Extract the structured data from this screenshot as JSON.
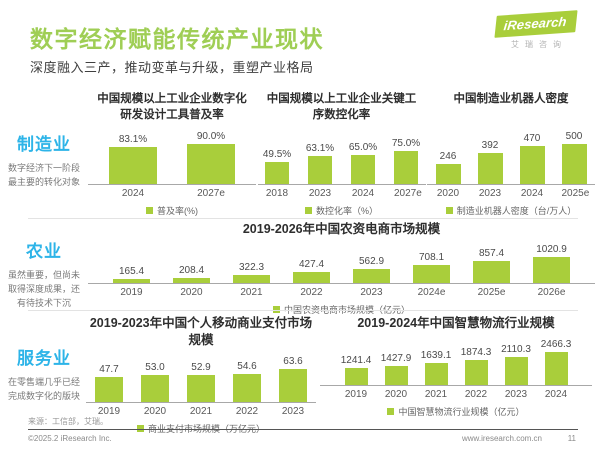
{
  "page": {
    "title": "数字经济赋能传统产业现状",
    "subtitle": "深度融入三产，推动变革与升级，重塑产业格局"
  },
  "logo": {
    "brand": "iResearch",
    "brand_cn": "艾瑞咨询"
  },
  "colors": {
    "accent_green": "#a9ce3b",
    "title_green": "#9fce55",
    "sidebar_blue": "#2db4e8",
    "divider_gray": "#e3e3e3"
  },
  "sidebar": {
    "sections": [
      {
        "label": "制造业",
        "desc": "数字经济下一阶段最主要的转化对象"
      },
      {
        "label": "农业",
        "desc": "虽然重要，但尚未取得深度成果，还有待技术下沉"
      },
      {
        "label": "服务业",
        "desc": "在零售端几乎已经完成数字化的版块"
      }
    ]
  },
  "chart_data": [
    {
      "type": "bar",
      "title": "中国规模以上工业企业数字化研发设计工具普及率",
      "categories": [
        "2024",
        "2027e"
      ],
      "values": [
        83.1,
        90.0
      ],
      "labels": [
        "83.1%",
        "90.0%"
      ],
      "legend": "普及率(%)",
      "legend_position": "bottom",
      "xlabel": "",
      "ylabel": "",
      "ylim": [
        0,
        100
      ],
      "grid": false
    },
    {
      "type": "bar",
      "title": "中国规模以上工业企业关键工序数控化率",
      "categories": [
        "2018",
        "2023",
        "2024",
        "2027e"
      ],
      "values": [
        49.5,
        63.1,
        65.0,
        75.0
      ],
      "labels": [
        "49.5%",
        "63.1%",
        "65.0%",
        "75.0%"
      ],
      "legend": "数控化率（%）",
      "legend_position": "bottom",
      "xlabel": "",
      "ylabel": "",
      "ylim": [
        0,
        100
      ],
      "grid": false
    },
    {
      "type": "bar",
      "title": "中国制造业机器人密度",
      "categories": [
        "2020",
        "2023",
        "2024",
        "2025e"
      ],
      "values": [
        246,
        392,
        470,
        500
      ],
      "labels": [
        "246",
        "392",
        "470",
        "500"
      ],
      "legend": "制造业机器人密度（台/万人）",
      "legend_position": "bottom",
      "xlabel": "",
      "ylabel": "",
      "ylim": [
        0,
        550
      ],
      "grid": false
    },
    {
      "type": "bar",
      "title": "2019-2026年中国农资电商市场规模",
      "categories": [
        "2019",
        "2020",
        "2021",
        "2022",
        "2023",
        "2024e",
        "2025e",
        "2026e"
      ],
      "values": [
        165.4,
        208.4,
        322.3,
        427.4,
        562.9,
        708.1,
        857.4,
        1020.9
      ],
      "labels": [
        "165.4",
        "208.4",
        "322.3",
        "427.4",
        "562.9",
        "708.1",
        "857.4",
        "1020.9"
      ],
      "legend": "中国农资电商市场规模（亿元）",
      "legend_position": "bottom",
      "xlabel": "",
      "ylabel": "",
      "ylim": [
        0,
        1100
      ],
      "grid": false
    },
    {
      "type": "bar",
      "title": "2019-2023年中国个人移动商业支付市场规模",
      "categories": [
        "2019",
        "2020",
        "2021",
        "2022",
        "2023"
      ],
      "values": [
        47.7,
        53.0,
        52.9,
        54.6,
        63.6
      ],
      "labels": [
        "47.7",
        "53.0",
        "52.9",
        "54.6",
        "63.6"
      ],
      "legend": "商业支付市场规模（万亿元）",
      "legend_position": "bottom",
      "xlabel": "",
      "ylabel": "",
      "ylim": [
        0,
        70
      ],
      "grid": false
    },
    {
      "type": "bar",
      "title": "2019-2024年中国智慧物流行业规模",
      "categories": [
        "2019",
        "2020",
        "2021",
        "2022",
        "2023",
        "2024"
      ],
      "values": [
        1241.4,
        1427.9,
        1639.1,
        1874.3,
        2110.3,
        2466.3
      ],
      "labels": [
        "1241.4",
        "1427.9",
        "1639.1",
        "1874.3",
        "2110.3",
        "2466.3"
      ],
      "legend": "中国智慧物流行业规模（亿元）",
      "legend_position": "bottom",
      "xlabel": "",
      "ylabel": "",
      "ylim": [
        0,
        2700
      ],
      "grid": false
    }
  ],
  "footer": {
    "source": "来源：工信部，艾瑞。",
    "copyright": "©2025.2 iResearch Inc.",
    "website": "www.iresearch.com.cn",
    "page_number": "11"
  }
}
